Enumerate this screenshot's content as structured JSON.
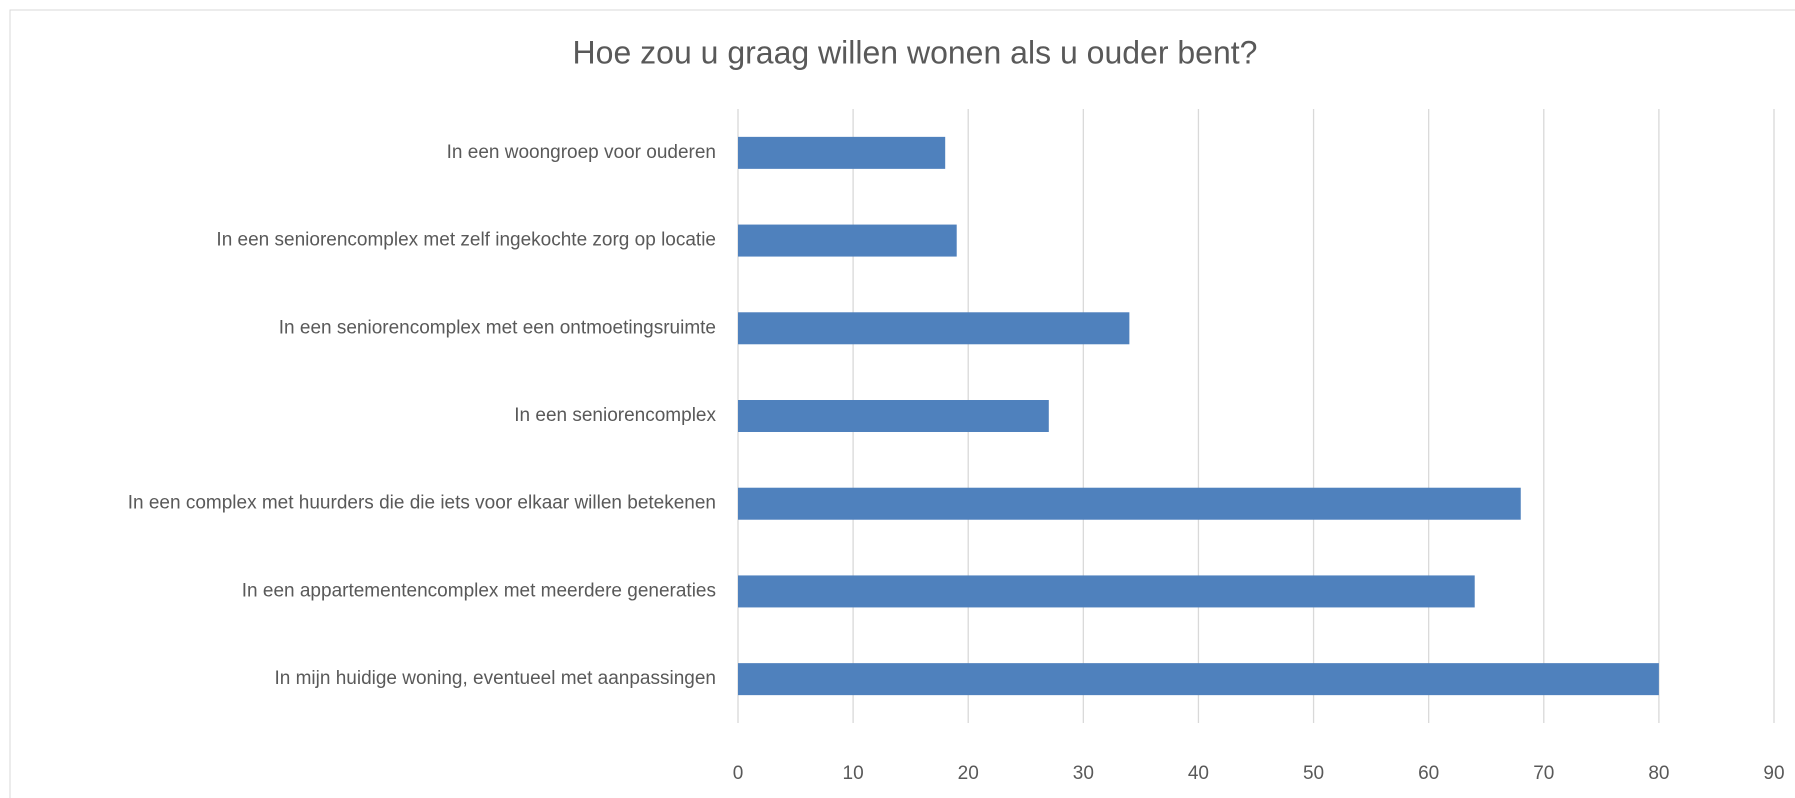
{
  "chart_data": {
    "type": "bar",
    "orientation": "horizontal",
    "title": "Hoe zou u graag willen wonen als u ouder bent?",
    "categories": [
      "In een woongroep voor ouderen",
      "In een seniorencomplex met zelf ingekochte zorg op locatie",
      "In een seniorencomplex met een ontmoetingsruimte",
      "In een seniorencomplex",
      "In een complex met huurders die die iets voor elkaar willen betekenen",
      "In een appartementencomplex met meerdere generaties",
      "In mijn huidige woning, eventueel met aanpassingen"
    ],
    "values": [
      18,
      19,
      34,
      27,
      68,
      64,
      80
    ],
    "color": "#4f81bd",
    "xlim": [
      0,
      90
    ],
    "xticks": [
      0,
      10,
      20,
      30,
      40,
      50,
      60,
      70,
      80,
      90
    ],
    "grid": true
  }
}
